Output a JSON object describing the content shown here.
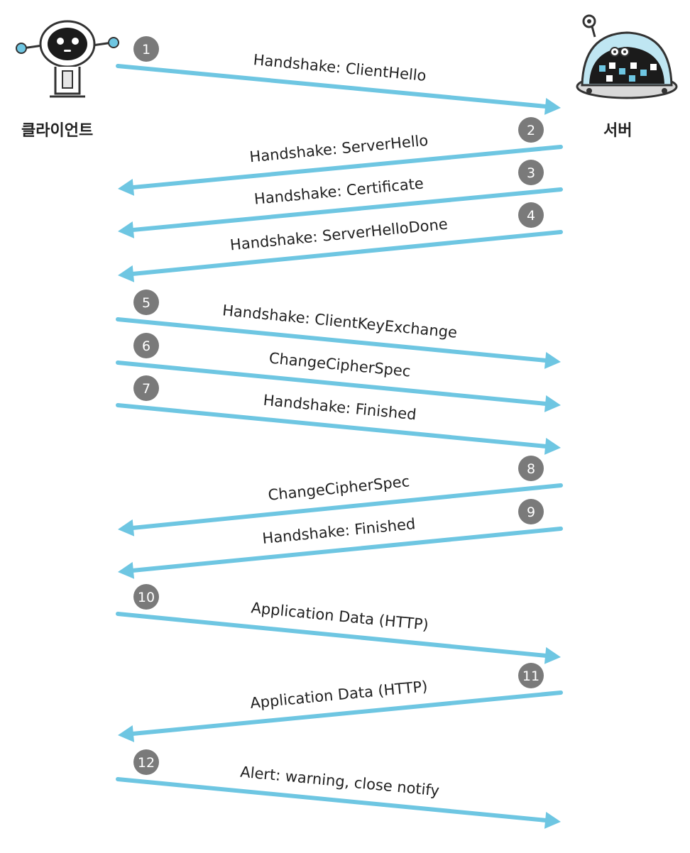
{
  "actors": {
    "client": {
      "label": "클라이언트",
      "icon": "robot-icon"
    },
    "server": {
      "label": "서버",
      "icon": "dome-robot-icon"
    }
  },
  "colors": {
    "arrow": "#6ec6e2",
    "badge": "#7a7a7a",
    "badge_text": "#ffffff",
    "message_text": "#222222"
  },
  "messages": [
    {
      "step": "1",
      "direction": "client-to-server",
      "label": "Handshake: ClientHello"
    },
    {
      "step": "2",
      "direction": "server-to-client",
      "label": "Handshake: ServerHello"
    },
    {
      "step": "3",
      "direction": "server-to-client",
      "label": "Handshake: Certificate"
    },
    {
      "step": "4",
      "direction": "server-to-client",
      "label": "Handshake: ServerHelloDone"
    },
    {
      "step": "5",
      "direction": "client-to-server",
      "label": "Handshake: ClientKeyExchange"
    },
    {
      "step": "6",
      "direction": "client-to-server",
      "label": "ChangeCipherSpec"
    },
    {
      "step": "7",
      "direction": "client-to-server",
      "label": "Handshake: Finished"
    },
    {
      "step": "8",
      "direction": "server-to-client",
      "label": "ChangeCipherSpec"
    },
    {
      "step": "9",
      "direction": "server-to-client",
      "label": "Handshake: Finished"
    },
    {
      "step": "10",
      "direction": "client-to-server",
      "label": "Application Data (HTTP)"
    },
    {
      "step": "11",
      "direction": "server-to-client",
      "label": "Application Data (HTTP)"
    },
    {
      "step": "12",
      "direction": "client-to-server",
      "label": "Alert: warning, close notify"
    }
  ]
}
